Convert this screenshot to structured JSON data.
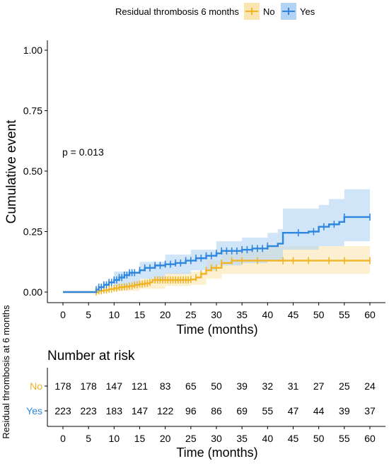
{
  "chart_data": {
    "type": "line",
    "subtype": "kaplan-meier cumulative event",
    "legend": {
      "title": "Residual thrombosis 6 months",
      "position": "top",
      "entries": [
        {
          "label": "No",
          "color": "#F0B323"
        },
        {
          "label": "Yes",
          "color": "#2E86DE"
        }
      ]
    },
    "ylabel": "Cumulative event",
    "xlabel": "Time (months)",
    "xlim": [
      0,
      60
    ],
    "ylim": [
      0,
      1
    ],
    "x_ticks": [
      "0",
      "5",
      "10",
      "15",
      "20",
      "25",
      "30",
      "35",
      "40",
      "45",
      "50",
      "55",
      "60"
    ],
    "y_ticks": [
      "0.00",
      "0.25",
      "0.50",
      "0.75",
      "1.00"
    ],
    "annotation": "p = 0.013",
    "series": [
      {
        "name": "No",
        "color": "#F0B323",
        "fill": "#FCE6B0",
        "steps": [
          [
            0,
            0
          ],
          [
            6,
            0
          ],
          [
            7,
            0.005
          ],
          [
            8,
            0.008
          ],
          [
            9,
            0.012
          ],
          [
            10,
            0.016
          ],
          [
            11,
            0.02
          ],
          [
            12,
            0.022
          ],
          [
            13,
            0.025
          ],
          [
            14,
            0.03
          ],
          [
            15,
            0.033
          ],
          [
            16,
            0.036
          ],
          [
            17,
            0.04
          ],
          [
            17.5,
            0.05
          ],
          [
            20,
            0.05
          ],
          [
            25,
            0.052
          ],
          [
            26,
            0.06
          ],
          [
            27,
            0.075
          ],
          [
            28,
            0.09
          ],
          [
            29,
            0.1
          ],
          [
            31,
            0.12
          ],
          [
            33,
            0.13
          ],
          [
            60,
            0.13
          ]
        ],
        "lower": [
          [
            0,
            0
          ],
          [
            6,
            0
          ],
          [
            10,
            0.005
          ],
          [
            15,
            0.013
          ],
          [
            20,
            0.025
          ],
          [
            25,
            0.03
          ],
          [
            28,
            0.055
          ],
          [
            31,
            0.075
          ],
          [
            60,
            0.075
          ]
        ],
        "upper": [
          [
            0,
            0
          ],
          [
            6,
            0
          ],
          [
            10,
            0.03
          ],
          [
            15,
            0.055
          ],
          [
            20,
            0.08
          ],
          [
            25,
            0.085
          ],
          [
            28,
            0.13
          ],
          [
            31,
            0.17
          ],
          [
            40,
            0.19
          ],
          [
            60,
            0.225
          ]
        ],
        "censor_times": [
          6.5,
          7,
          7.5,
          8,
          8.5,
          9,
          9.5,
          10,
          10.5,
          11,
          11.5,
          12,
          12.5,
          13,
          13.5,
          14,
          14.5,
          15,
          15.5,
          16,
          16.5,
          17,
          18,
          18.5,
          19,
          19.5,
          20,
          20.5,
          21,
          21.5,
          22,
          22.5,
          23,
          23.5,
          24,
          24.5,
          25,
          26,
          27,
          28,
          29,
          30,
          31,
          33,
          35,
          38,
          43,
          45,
          48,
          52,
          55,
          60
        ]
      },
      {
        "name": "Yes",
        "color": "#2E86DE",
        "fill": "#B3D3F5",
        "steps": [
          [
            0,
            0
          ],
          [
            6,
            0
          ],
          [
            6.5,
            0.01
          ],
          [
            7,
            0.02
          ],
          [
            8,
            0.03
          ],
          [
            9,
            0.04
          ],
          [
            10,
            0.05
          ],
          [
            11,
            0.06
          ],
          [
            12,
            0.07
          ],
          [
            13,
            0.08
          ],
          [
            15,
            0.09
          ],
          [
            16,
            0.1
          ],
          [
            18,
            0.11
          ],
          [
            20,
            0.115
          ],
          [
            22,
            0.12
          ],
          [
            24,
            0.13
          ],
          [
            26,
            0.14
          ],
          [
            28,
            0.15
          ],
          [
            30,
            0.16
          ],
          [
            31,
            0.17
          ],
          [
            35,
            0.175
          ],
          [
            37,
            0.18
          ],
          [
            40,
            0.19
          ],
          [
            42,
            0.2
          ],
          [
            43,
            0.245
          ],
          [
            48,
            0.25
          ],
          [
            50,
            0.27
          ],
          [
            52,
            0.28
          ],
          [
            54,
            0.29
          ],
          [
            55,
            0.31
          ],
          [
            60,
            0.31
          ]
        ],
        "lower": [
          [
            0,
            0
          ],
          [
            6,
            0
          ],
          [
            10,
            0.025
          ],
          [
            15,
            0.055
          ],
          [
            20,
            0.075
          ],
          [
            25,
            0.09
          ],
          [
            30,
            0.11
          ],
          [
            35,
            0.12
          ],
          [
            40,
            0.13
          ],
          [
            43,
            0.175
          ],
          [
            50,
            0.19
          ],
          [
            55,
            0.21
          ],
          [
            60,
            0.21
          ]
        ],
        "upper": [
          [
            0,
            0
          ],
          [
            6,
            0
          ],
          [
            10,
            0.085
          ],
          [
            15,
            0.125
          ],
          [
            20,
            0.155
          ],
          [
            25,
            0.175
          ],
          [
            30,
            0.21
          ],
          [
            35,
            0.225
          ],
          [
            40,
            0.245
          ],
          [
            42,
            0.26
          ],
          [
            43,
            0.345
          ],
          [
            50,
            0.36
          ],
          [
            52,
            0.385
          ],
          [
            55,
            0.425
          ],
          [
            60,
            0.425
          ]
        ],
        "censor_times": [
          6.5,
          7,
          7.5,
          8,
          8.5,
          9,
          9.5,
          10,
          10.5,
          11,
          11.5,
          12,
          12.5,
          13,
          13.5,
          14,
          15,
          16,
          17,
          18,
          19,
          20,
          21,
          22,
          23,
          24,
          25,
          26,
          27,
          28,
          29,
          30,
          31,
          32,
          33,
          34,
          35,
          36,
          37,
          38,
          39,
          40,
          46,
          49,
          51,
          53,
          55,
          60
        ]
      }
    ],
    "risk_table": {
      "title": "Number at risk",
      "ylabel": "Residual thrombosis at 6 months",
      "xlabel": "Time (months)",
      "times": [
        "0",
        "5",
        "10",
        "15",
        "20",
        "25",
        "30",
        "35",
        "40",
        "45",
        "50",
        "55",
        "60"
      ],
      "rows": [
        {
          "label": "No",
          "color": "#F0B323",
          "values": [
            "178",
            "178",
            "147",
            "121",
            "83",
            "65",
            "50",
            "39",
            "32",
            "31",
            "27",
            "25",
            "24"
          ]
        },
        {
          "label": "Yes",
          "color": "#2E86DE",
          "values": [
            "223",
            "223",
            "183",
            "147",
            "122",
            "96",
            "86",
            "69",
            "55",
            "47",
            "44",
            "39",
            "37"
          ]
        }
      ]
    }
  }
}
